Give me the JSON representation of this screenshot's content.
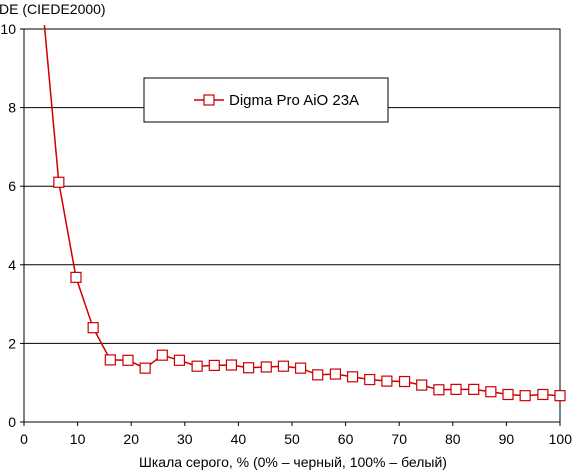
{
  "chart_data": {
    "type": "line",
    "title": "",
    "xlabel": "Шкала серого, % (0% – черный, 100% – белый)",
    "ylabel": "DE (CIEDE2000)",
    "xlim": [
      0,
      100
    ],
    "ylim": [
      0,
      10
    ],
    "xticks": [
      "0",
      "10",
      "20",
      "30",
      "40",
      "50",
      "60",
      "70",
      "80",
      "90",
      "100"
    ],
    "yticks": [
      "0",
      "2",
      "4",
      "6",
      "8",
      "10"
    ],
    "grid": "horizontal",
    "legend_position": "top-center",
    "series": [
      {
        "name": "Digma Pro AiO 23A",
        "color": "#cc0000",
        "marker": "open-square",
        "x": [
          3.8,
          6.5,
          9.7,
          12.9,
          16.1,
          19.4,
          22.6,
          25.8,
          29.0,
          32.3,
          35.5,
          38.7,
          41.9,
          45.2,
          48.4,
          51.6,
          54.8,
          58.1,
          61.3,
          64.5,
          67.7,
          71.0,
          74.2,
          77.4,
          80.6,
          83.9,
          87.1,
          90.3,
          93.5,
          96.8,
          100
        ],
        "y": [
          10.1,
          6.1,
          3.68,
          2.4,
          1.58,
          1.57,
          1.37,
          1.7,
          1.57,
          1.42,
          1.44,
          1.45,
          1.38,
          1.4,
          1.42,
          1.37,
          1.2,
          1.22,
          1.15,
          1.08,
          1.04,
          1.03,
          0.94,
          0.82,
          0.83,
          0.83,
          0.77,
          0.7,
          0.67,
          0.7,
          0.67
        ]
      }
    ]
  }
}
